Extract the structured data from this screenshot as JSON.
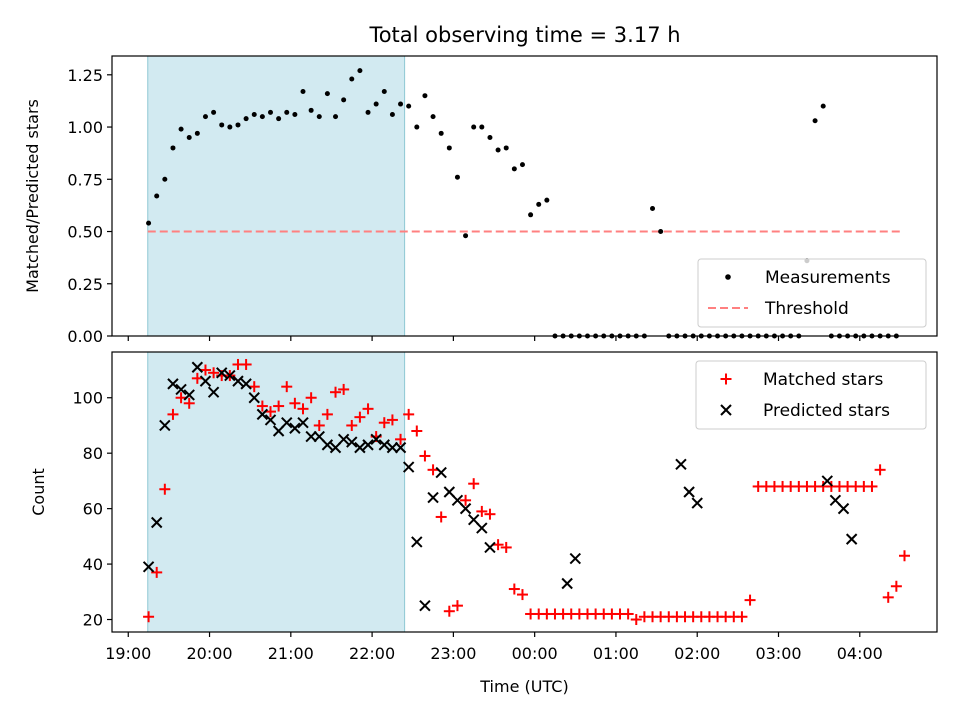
{
  "chart_data": [
    {
      "type": "scatter",
      "title": "Total observing time = 3.17 h",
      "xlabel": "",
      "ylabel": "Matched/Predicted stars",
      "x_unit": "hours UTC since 19:00",
      "xlim": [
        18.8,
        28.95
      ],
      "ylim": [
        0,
        1.34
      ],
      "yticks": [
        "0.00",
        "0.25",
        "0.50",
        "0.75",
        "1.00",
        "1.25"
      ],
      "ytick_values": [
        0,
        0.25,
        0.5,
        0.75,
        1.0,
        1.25
      ],
      "shaded_interval": {
        "from": 19.24,
        "to": 22.4,
        "color": "#add8e6"
      },
      "threshold": {
        "value": 0.5,
        "from": 19.24,
        "to": 28.5,
        "color": "#ff8080"
      },
      "legend_position": "lower right",
      "legend": {
        "measurements": "Measurements",
        "threshold": "Threshold"
      },
      "series": [
        {
          "name": "Measurements",
          "color": "#000000",
          "x": [
            19.25,
            19.35,
            19.45,
            19.55,
            19.65,
            19.75,
            19.85,
            19.95,
            20.05,
            20.15,
            20.25,
            20.35,
            20.45,
            20.55,
            20.65,
            20.75,
            20.85,
            20.95,
            21.05,
            21.15,
            21.25,
            21.35,
            21.45,
            21.55,
            21.65,
            21.75,
            21.85,
            21.95,
            22.05,
            22.15,
            22.25,
            22.35,
            22.45,
            22.55,
            22.65,
            22.75,
            22.85,
            22.95,
            23.05,
            23.15,
            23.25,
            23.35,
            23.45,
            23.55,
            23.65,
            23.75,
            23.85,
            23.95,
            24.05,
            24.15,
            24.25,
            24.35,
            24.45,
            24.55,
            24.65,
            24.75,
            24.85,
            24.95,
            25.05,
            25.15,
            25.25,
            25.35,
            25.45,
            25.55,
            25.65,
            25.75,
            25.85,
            25.95,
            26.05,
            26.15,
            26.25,
            26.35,
            26.45,
            26.55,
            26.65,
            26.75,
            26.85,
            26.95,
            27.05,
            27.15,
            27.25,
            27.35,
            27.45,
            27.55,
            27.65,
            27.75,
            27.85,
            27.95,
            28.05,
            28.15,
            28.25,
            28.35,
            28.45
          ],
          "y": [
            0.54,
            0.67,
            0.75,
            0.9,
            0.99,
            0.95,
            0.97,
            1.05,
            1.07,
            1.01,
            1.0,
            1.01,
            1.04,
            1.06,
            1.05,
            1.07,
            1.04,
            1.07,
            1.06,
            1.17,
            1.08,
            1.05,
            1.16,
            1.05,
            1.13,
            1.23,
            1.27,
            1.07,
            1.11,
            1.17,
            1.06,
            1.11,
            1.1,
            1.0,
            1.15,
            1.05,
            0.97,
            0.9,
            0.76,
            0.48,
            1.0,
            1.0,
            0.95,
            0.89,
            0.9,
            0.8,
            0.82,
            0.58,
            0.63,
            0.65,
            0.0,
            0.0,
            0.0,
            0.0,
            0.0,
            0.0,
            0.0,
            0.0,
            0.0,
            0.0,
            0.0,
            0.0,
            0.61,
            0.5,
            0.0,
            0.0,
            0.0,
            0.0,
            0.0,
            0.0,
            0.0,
            0.0,
            0.0,
            0.0,
            0.0,
            0.0,
            0.0,
            0.0,
            0.0,
            0.0,
            0.0,
            0.36,
            1.03,
            1.1,
            0.0,
            0.0,
            0.0,
            0.0,
            0.0,
            0.0,
            0.0,
            0.0,
            0.0
          ]
        }
      ]
    },
    {
      "type": "scatter",
      "title": "",
      "xlabel": "Time (UTC)",
      "ylabel": "Count",
      "x_unit": "hours UTC since 19:00",
      "xlim": [
        18.8,
        28.95
      ],
      "ylim": [
        15.5,
        116.5
      ],
      "yticks": [
        "20",
        "40",
        "60",
        "80",
        "100"
      ],
      "ytick_values": [
        20,
        40,
        60,
        80,
        100
      ],
      "xticks": [
        "19:00",
        "20:00",
        "21:00",
        "22:00",
        "23:00",
        "00:00",
        "01:00",
        "02:00",
        "03:00",
        "04:00"
      ],
      "xtick_values": [
        19,
        20,
        21,
        22,
        23,
        24,
        25,
        26,
        27,
        28
      ],
      "shaded_interval": {
        "from": 19.24,
        "to": 22.4,
        "color": "#add8e6"
      },
      "legend_position": "upper right",
      "series": [
        {
          "name": "Matched stars",
          "color": "#ff0000",
          "marker": "+",
          "x": [
            19.25,
            19.35,
            19.45,
            19.55,
            19.65,
            19.75,
            19.85,
            19.95,
            20.05,
            20.15,
            20.25,
            20.35,
            20.45,
            20.55,
            20.65,
            20.75,
            20.85,
            20.95,
            21.05,
            21.15,
            21.25,
            21.35,
            21.45,
            21.55,
            21.65,
            21.75,
            21.85,
            21.95,
            22.05,
            22.15,
            22.25,
            22.35,
            22.45,
            22.55,
            22.65,
            22.75,
            22.85,
            22.95,
            23.05,
            23.15,
            23.25,
            23.35,
            23.45,
            23.55,
            23.65,
            23.75,
            23.85,
            23.95,
            24.05,
            24.15,
            24.25,
            24.35,
            24.45,
            24.55,
            24.65,
            24.75,
            24.85,
            24.95,
            25.05,
            25.15,
            25.25,
            25.35,
            25.45,
            25.55,
            25.65,
            25.75,
            25.85,
            25.95,
            26.05,
            26.15,
            26.25,
            26.35,
            26.45,
            26.55,
            26.65,
            26.75,
            26.85,
            26.95,
            27.05,
            27.15,
            27.25,
            27.35,
            27.45,
            27.55,
            27.65,
            27.75,
            27.85,
            27.95,
            28.05,
            28.15,
            28.25,
            28.35,
            28.45,
            28.55
          ],
          "y": [
            21,
            37,
            67,
            94,
            100,
            98,
            107,
            110,
            109,
            108,
            108,
            112,
            112,
            104,
            97,
            95,
            97,
            104,
            98,
            96,
            100,
            90,
            94,
            102,
            103,
            90,
            93,
            96,
            86,
            91,
            92,
            85,
            94,
            88,
            79,
            74,
            57,
            23,
            25,
            63,
            69,
            59,
            58,
            47,
            46,
            31,
            29,
            22,
            22,
            22,
            22,
            22,
            22,
            22,
            22,
            22,
            22,
            22,
            22,
            22,
            20,
            21,
            21,
            21,
            21,
            21,
            21,
            21,
            21,
            21,
            21,
            21,
            21,
            21,
            27,
            68,
            68,
            68,
            68,
            68,
            68,
            68,
            68,
            68,
            68,
            68,
            68,
            68,
            68,
            68,
            74,
            28,
            32,
            43
          ]
        },
        {
          "name": "Predicted stars",
          "color": "#000000",
          "marker": "x",
          "x": [
            19.25,
            19.35,
            19.45,
            19.55,
            19.65,
            19.75,
            19.85,
            19.95,
            20.05,
            20.15,
            20.25,
            20.35,
            20.45,
            20.55,
            20.65,
            20.75,
            20.85,
            20.95,
            21.05,
            21.15,
            21.25,
            21.35,
            21.45,
            21.55,
            21.65,
            21.75,
            21.85,
            21.95,
            22.05,
            22.15,
            22.25,
            22.35,
            22.45,
            22.55,
            22.65,
            22.75,
            22.85,
            22.95,
            23.05,
            23.15,
            23.25,
            23.35,
            23.45,
            24.4,
            24.5,
            25.8,
            25.9,
            26.0,
            27.6,
            27.7,
            27.8,
            27.9
          ],
          "y": [
            39,
            55,
            90,
            105,
            103,
            101,
            111,
            106,
            102,
            109,
            108,
            106,
            105,
            100,
            94,
            92,
            88,
            91,
            89,
            91,
            86,
            86,
            83,
            82,
            85,
            84,
            82,
            83,
            85,
            83,
            82,
            82,
            75,
            48,
            25,
            64,
            73,
            66,
            63,
            60,
            56,
            53,
            46,
            33,
            42,
            76,
            66,
            62,
            70,
            63,
            60,
            49
          ]
        }
      ]
    }
  ]
}
